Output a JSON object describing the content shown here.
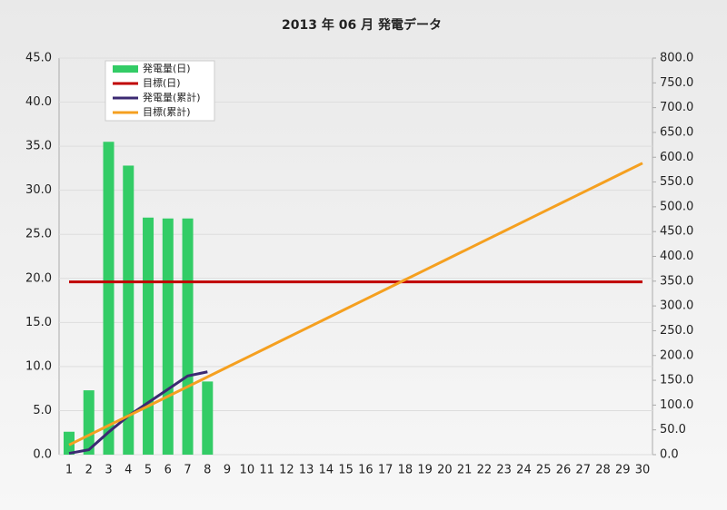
{
  "chart_data": {
    "type": "combo",
    "title": "2013 年 06 月 発電データ",
    "categories": [
      "1",
      "2",
      "3",
      "4",
      "5",
      "6",
      "7",
      "8",
      "9",
      "10",
      "11",
      "12",
      "13",
      "14",
      "15",
      "16",
      "17",
      "18",
      "19",
      "20",
      "21",
      "22",
      "23",
      "24",
      "25",
      "26",
      "27",
      "28",
      "29",
      "30"
    ],
    "series": [
      {
        "name": "発電量(日)",
        "type": "bar",
        "color": "#33cc66",
        "values": [
          2.6,
          7.3,
          35.5,
          32.8,
          26.9,
          26.8,
          26.8,
          8.3,
          null,
          null,
          null,
          null,
          null,
          null,
          null,
          null,
          null,
          null,
          null,
          null,
          null,
          null,
          null,
          null,
          null,
          null,
          null,
          null,
          null,
          null
        ]
      },
      {
        "name": "目標(日)",
        "type": "line",
        "color": "#c00000",
        "values": [
          19.6,
          19.6,
          19.6,
          19.6,
          19.6,
          19.6,
          19.6,
          19.6,
          19.6,
          19.6,
          19.6,
          19.6,
          19.6,
          19.6,
          19.6,
          19.6,
          19.6,
          19.6,
          19.6,
          19.6,
          19.6,
          19.6,
          19.6,
          19.6,
          19.6,
          19.6,
          19.6,
          19.6,
          19.6,
          19.6
        ]
      },
      {
        "name": "発電量(累計)",
        "type": "line",
        "axis": "y2",
        "color": "#3b2a72",
        "values": [
          2.6,
          9.9,
          45.4,
          78.2,
          105.1,
          131.9,
          158.7,
          167.0,
          null,
          null,
          null,
          null,
          null,
          null,
          null,
          null,
          null,
          null,
          null,
          null,
          null,
          null,
          null,
          null,
          null,
          null,
          null,
          null,
          null,
          null
        ]
      },
      {
        "name": "目標(累計)",
        "type": "line",
        "axis": "y2",
        "color": "#f5a020",
        "values": [
          19.6,
          39.2,
          58.8,
          78.4,
          98,
          117.6,
          137.2,
          156.8,
          176.4,
          196,
          215.6,
          235.2,
          254.8,
          274.4,
          294,
          313.6,
          333.2,
          352.8,
          372.4,
          392,
          411.6,
          431.2,
          450.8,
          470.4,
          490,
          509.6,
          529.2,
          548.8,
          568.4,
          588
        ]
      }
    ],
    "ylim": [
      0,
      45
    ],
    "yticks": [
      {
        "value": 0,
        "label": "0.0"
      },
      {
        "value": 5,
        "label": "5.0"
      },
      {
        "value": 10,
        "label": "10.0"
      },
      {
        "value": 15,
        "label": "15.0"
      },
      {
        "value": 20,
        "label": "20.0"
      },
      {
        "value": 25,
        "label": "25.0"
      },
      {
        "value": 30,
        "label": "30.0"
      },
      {
        "value": 35,
        "label": "35.0"
      },
      {
        "value": 40,
        "label": "40.0"
      },
      {
        "value": 45,
        "label": "45.0"
      }
    ],
    "y2lim": [
      0,
      800
    ],
    "y2ticks": [
      {
        "value": 0,
        "label": "0.0"
      },
      {
        "value": 50,
        "label": "50.0"
      },
      {
        "value": 100,
        "label": "100.0"
      },
      {
        "value": 150,
        "label": "150.0"
      },
      {
        "value": 200,
        "label": "200.0"
      },
      {
        "value": 250,
        "label": "250.0"
      },
      {
        "value": 300,
        "label": "300.0"
      },
      {
        "value": 350,
        "label": "350.0"
      },
      {
        "value": 400,
        "label": "400.0"
      },
      {
        "value": 450,
        "label": "450.0"
      },
      {
        "value": 500,
        "label": "500.0"
      },
      {
        "value": 550,
        "label": "550.0"
      },
      {
        "value": 600,
        "label": "600.0"
      },
      {
        "value": 650,
        "label": "650.0"
      },
      {
        "value": 700,
        "label": "700.0"
      },
      {
        "value": 750,
        "label": "750.0"
      },
      {
        "value": 800,
        "label": "800.0"
      }
    ],
    "grid": true,
    "legend": "upper left"
  }
}
